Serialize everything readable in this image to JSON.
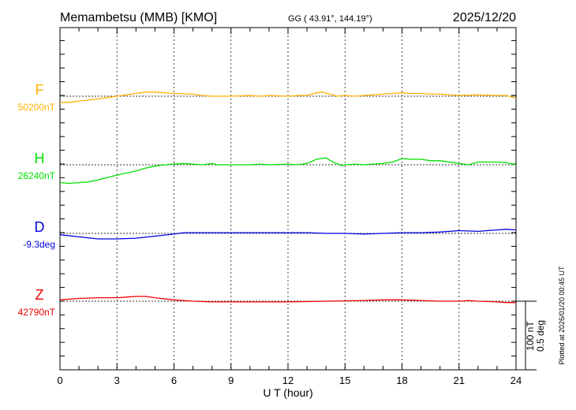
{
  "header": {
    "station": "Memambetsu (MMB)  [KMO]",
    "coords": "GG ( 43.91°, 144.19°)",
    "date": "2025/12/20"
  },
  "footer_note": "Plotted at 2026/01/20 00:45 UT",
  "chart_data": {
    "type": "line",
    "xlabel": "U T (hour)",
    "xlim": [
      0,
      24
    ],
    "xticks": [
      "0",
      "3",
      "6",
      "9",
      "12",
      "15",
      "18",
      "21",
      "24"
    ],
    "grid": "dotted vertical every 3 hours",
    "scale_bar": {
      "nT": "100 nT",
      "deg": "0.5 deg"
    },
    "series": [
      {
        "name": "F",
        "baseline_label": "50200nT",
        "unit": "nT",
        "color": "#ffb000",
        "points": [
          [
            0,
            -9
          ],
          [
            0.5,
            -9
          ],
          [
            1,
            -7
          ],
          [
            2,
            -4
          ],
          [
            3,
            0
          ],
          [
            3.5,
            2
          ],
          [
            4,
            4
          ],
          [
            4.5,
            6
          ],
          [
            5,
            6
          ],
          [
            6,
            4
          ],
          [
            7,
            3
          ],
          [
            7.5,
            1
          ],
          [
            8,
            0
          ],
          [
            9,
            0
          ],
          [
            10,
            1
          ],
          [
            10.5,
            0
          ],
          [
            11,
            1
          ],
          [
            12,
            0
          ],
          [
            12.5,
            1
          ],
          [
            13,
            1
          ],
          [
            13.5,
            5
          ],
          [
            13.8,
            6
          ],
          [
            14.2,
            3
          ],
          [
            14.6,
            0
          ],
          [
            15,
            1
          ],
          [
            15.5,
            0
          ],
          [
            16,
            1
          ],
          [
            16.5,
            2
          ],
          [
            17,
            3
          ],
          [
            17.5,
            4
          ],
          [
            18,
            5
          ],
          [
            18.5,
            4
          ],
          [
            19,
            4
          ],
          [
            19.5,
            3
          ],
          [
            20,
            3
          ],
          [
            21,
            1
          ],
          [
            22,
            2
          ],
          [
            23,
            1
          ],
          [
            23.5,
            1
          ],
          [
            24,
            -3
          ]
        ]
      },
      {
        "name": "H",
        "baseline_label": "26240nT",
        "unit": "nT",
        "color": "#00e000",
        "points": [
          [
            0,
            -26
          ],
          [
            0.5,
            -27
          ],
          [
            1,
            -26
          ],
          [
            1.5,
            -25
          ],
          [
            2,
            -22
          ],
          [
            3,
            -15
          ],
          [
            3.5,
            -12
          ],
          [
            4,
            -9
          ],
          [
            4.5,
            -5
          ],
          [
            5,
            -2
          ],
          [
            5.5,
            0
          ],
          [
            6,
            1
          ],
          [
            6.5,
            2
          ],
          [
            7,
            1
          ],
          [
            7.5,
            0
          ],
          [
            8,
            2
          ],
          [
            8.3,
            0
          ],
          [
            9,
            0
          ],
          [
            10,
            0
          ],
          [
            10.5,
            1
          ],
          [
            11,
            0
          ],
          [
            12,
            1
          ],
          [
            12.5,
            0
          ],
          [
            13,
            2
          ],
          [
            13.5,
            8
          ],
          [
            14,
            10
          ],
          [
            14.3,
            5
          ],
          [
            14.8,
            -1
          ],
          [
            15,
            0
          ],
          [
            15.5,
            1
          ],
          [
            16,
            0
          ],
          [
            16.5,
            1
          ],
          [
            17,
            2
          ],
          [
            17.5,
            4
          ],
          [
            18,
            9
          ],
          [
            18.5,
            8
          ],
          [
            19,
            8
          ],
          [
            19.5,
            6
          ],
          [
            20,
            6
          ],
          [
            21,
            2
          ],
          [
            21.5,
            0
          ],
          [
            22,
            4
          ],
          [
            23,
            4
          ],
          [
            23.5,
            3
          ],
          [
            24,
            0
          ]
        ]
      },
      {
        "name": "D",
        "baseline_label": "-9.3deg",
        "unit": "deg",
        "color": "#0000e0",
        "points": [
          [
            0,
            -0.01
          ],
          [
            1,
            -0.025
          ],
          [
            2,
            -0.04
          ],
          [
            3,
            -0.04
          ],
          [
            4,
            -0.035
          ],
          [
            5,
            -0.02
          ],
          [
            6,
            -0.005
          ],
          [
            6.5,
            0.005
          ],
          [
            8,
            0.005
          ],
          [
            10,
            0.005
          ],
          [
            12,
            0.005
          ],
          [
            13,
            0.005
          ],
          [
            14,
            0.0
          ],
          [
            15,
            0.0
          ],
          [
            16,
            -0.005
          ],
          [
            17,
            0.0
          ],
          [
            18,
            0.005
          ],
          [
            19,
            0.005
          ],
          [
            20,
            0.01
          ],
          [
            21,
            0.02
          ],
          [
            22,
            0.015
          ],
          [
            23,
            0.025
          ],
          [
            23.5,
            0.03
          ],
          [
            24,
            0.025
          ]
        ]
      },
      {
        "name": "Z",
        "baseline_label": "42790nT",
        "unit": "nT",
        "color": "#f00000",
        "points": [
          [
            0,
            2
          ],
          [
            1,
            4
          ],
          [
            2,
            5
          ],
          [
            3,
            5
          ],
          [
            3.5,
            6
          ],
          [
            4,
            7
          ],
          [
            4.5,
            7
          ],
          [
            5,
            5
          ],
          [
            6,
            2
          ],
          [
            7,
            0
          ],
          [
            8,
            -1
          ],
          [
            10,
            -1
          ],
          [
            12,
            -1
          ],
          [
            14,
            0
          ],
          [
            16,
            1
          ],
          [
            17,
            2
          ],
          [
            18,
            2
          ],
          [
            19,
            1
          ],
          [
            20,
            0
          ],
          [
            21,
            0
          ],
          [
            21.5,
            1
          ],
          [
            22,
            0
          ],
          [
            23,
            -1
          ],
          [
            23.5,
            -2
          ],
          [
            24,
            -2
          ]
        ]
      }
    ]
  }
}
